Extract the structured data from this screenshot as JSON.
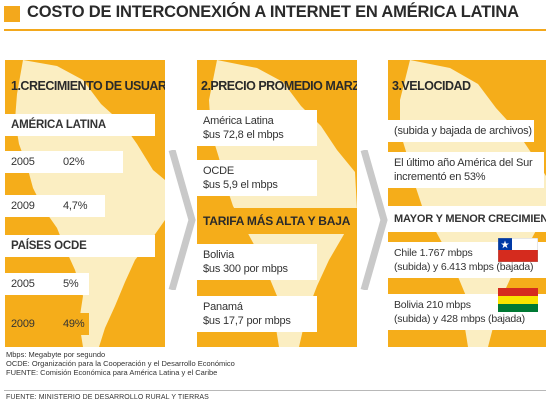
{
  "title": "COSTO DE INTERCONEXIÓN A INTERNET EN AMÉRICA LATINA",
  "colors": {
    "accent": "#f5ad1a",
    "map": "#fbeec2"
  },
  "panel1": {
    "header": "1.CRECIMIENTO DE USUARIOS",
    "rows": [
      {
        "label": "AMÉRICA LATINA",
        "value": ""
      },
      {
        "label": "2005",
        "value": "02%"
      },
      {
        "label": "2009",
        "value": "4,7%"
      },
      {
        "label": "PAÍSES OCDE",
        "value": ""
      },
      {
        "label": "2005",
        "value": "5%"
      },
      {
        "label": "2009",
        "value": "49%"
      }
    ]
  },
  "panel2": {
    "header": "2.PRECIO PROMEDIO MARZO 2011",
    "rows": [
      {
        "line1": "América Latina",
        "line2": "$us 72,8 el mbps"
      },
      {
        "line1": "OCDE",
        "line2": "$us 5,9 el mbps"
      },
      {
        "line1": "TARIFA MÁS ALTA Y BAJA",
        "line2": ""
      },
      {
        "line1": "Bolivia",
        "line2": "$us 300 por mbps"
      },
      {
        "line1": "Panamá",
        "line2": "$us 17,7 por mbps"
      }
    ]
  },
  "panel3": {
    "header": "3.VELOCIDAD",
    "rows": [
      {
        "line1": "(subida y bajada de archivos)",
        "line2": ""
      },
      {
        "line1": "El último año América del Sur",
        "line2": "incrementó en 53%"
      },
      {
        "line1": "MAYOR Y MENOR CRECIMIENTO",
        "line2": ""
      },
      {
        "line1": "Chile     1.767 mbps",
        "line2": "(subida) y 6.413 mbps (bajada)"
      },
      {
        "line1": "Bolivia     210 mbps",
        "line2": "(subida) y 428 mbps (bajada)"
      }
    ]
  },
  "footnotes": [
    "Mbps: Megabyte por segundo",
    "OCDE: Organización para la Cooperación y el Desarrollo Económico",
    "FUENTE: Comisión Económica para América Latina y el Caribe"
  ],
  "source": "FUENTE: MINISTERIO DE DESARROLLO RURAL Y TIERRAS"
}
